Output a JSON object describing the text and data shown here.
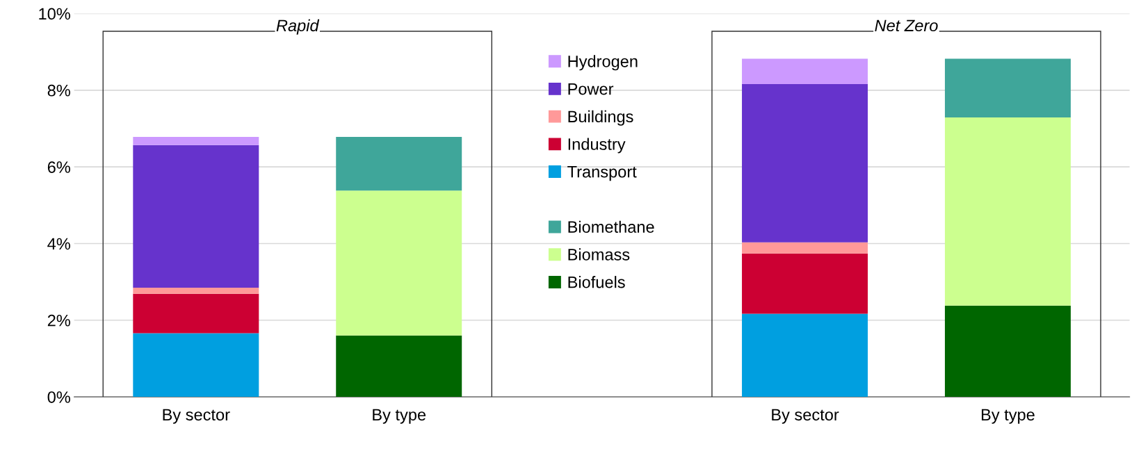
{
  "chart_data": {
    "type": "bar",
    "stacked": true,
    "categories": [
      "By sector",
      "By type",
      null,
      "By sector",
      "By type"
    ],
    "series": [
      {
        "name": "Transport",
        "color": "#009fe0",
        "values": [
          1.66,
          null,
          null,
          2.17,
          null
        ]
      },
      {
        "name": "Industry",
        "color": "#cc0033",
        "values": [
          1.03,
          null,
          null,
          1.57,
          null
        ]
      },
      {
        "name": "Buildings",
        "color": "#ff9999",
        "values": [
          0.16,
          null,
          null,
          0.29,
          null
        ]
      },
      {
        "name": "Power",
        "color": "#6633cc",
        "values": [
          3.72,
          null,
          null,
          4.13,
          null
        ]
      },
      {
        "name": "Hydrogen",
        "color": "#cc99ff",
        "values": [
          0.21,
          null,
          null,
          0.66,
          null
        ]
      },
      {
        "name": "Biofuels",
        "color": "#006600",
        "values": [
          null,
          1.6,
          null,
          null,
          2.38
        ]
      },
      {
        "name": "Biomass",
        "color": "#ccff8f",
        "values": [
          null,
          3.78,
          null,
          null,
          4.91
        ]
      },
      {
        "name": "Biomethane",
        "color": "#3fa69a",
        "values": [
          null,
          1.4,
          null,
          null,
          1.53
        ]
      }
    ],
    "ylim": [
      0,
      10
    ],
    "yticks": [
      {
        "value": 0,
        "label": "0%"
      },
      {
        "value": 2,
        "label": "2%"
      },
      {
        "value": 4,
        "label": "4%"
      },
      {
        "value": 6,
        "label": "6%"
      },
      {
        "value": 8,
        "label": "8%"
      },
      {
        "value": 10,
        "label": "10%"
      }
    ],
    "grid": "y",
    "legend": "top",
    "annotations": [
      "Rapid",
      "Net Zero"
    ]
  }
}
